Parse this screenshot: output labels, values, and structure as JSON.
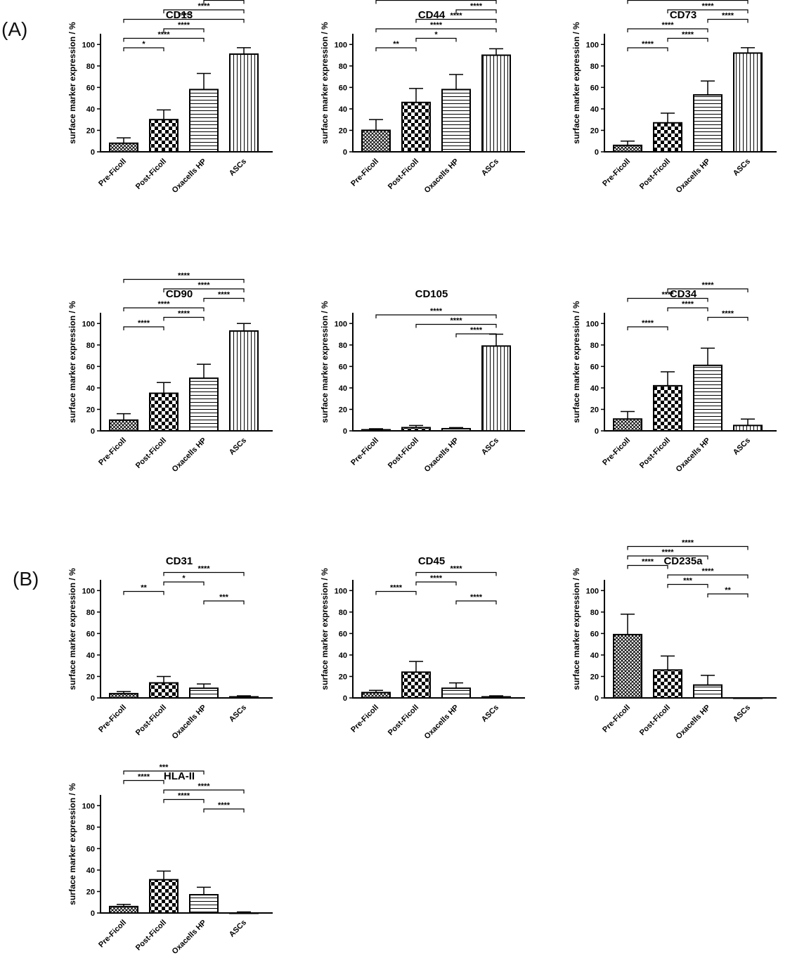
{
  "figure": {
    "panel_a": "(A)",
    "panel_b": "(B)"
  },
  "colors": {
    "ink": "#000000",
    "background": "#ffffff"
  },
  "chart_data": [
    {
      "type": "bar",
      "title": "CD13",
      "categories": [
        "Pre-Ficoll",
        "Post-Ficoll",
        "Oxacells HP",
        "ASCs"
      ],
      "values": [
        8,
        30,
        58,
        91
      ],
      "errors": [
        5,
        9,
        15,
        6
      ],
      "patterns": [
        "pattern-crosshatch-fine",
        "pattern-checker",
        "pattern-horizontal-lines",
        "pattern-vertical-lines"
      ],
      "ylabel": "surface marker expression / %",
      "xlabel": "",
      "ylim": [
        0,
        110
      ],
      "yticks": [
        0,
        20,
        40,
        60,
        80,
        100
      ],
      "significance": [
        {
          "from": 0,
          "to": 1,
          "label": "*"
        },
        {
          "from": 0,
          "to": 2,
          "label": "****"
        },
        {
          "from": 1,
          "to": 2,
          "label": "****"
        },
        {
          "from": 0,
          "to": 3,
          "label": "****"
        },
        {
          "from": 1,
          "to": 3,
          "label": "****"
        },
        {
          "from": 2,
          "to": 3,
          "label": "****"
        }
      ]
    },
    {
      "type": "bar",
      "title": "CD44",
      "categories": [
        "Pre-Ficoll",
        "Post-Ficoll",
        "Oxacells HP",
        "ASCs"
      ],
      "values": [
        20,
        46,
        58,
        90
      ],
      "errors": [
        10,
        13,
        14,
        6
      ],
      "patterns": [
        "pattern-crosshatch-fine",
        "pattern-checker",
        "pattern-horizontal-lines",
        "pattern-vertical-lines"
      ],
      "ylabel": "surface marker expression / %",
      "xlabel": "",
      "ylim": [
        0,
        110
      ],
      "yticks": [
        0,
        20,
        40,
        60,
        80,
        100
      ],
      "significance": [
        {
          "from": 0,
          "to": 1,
          "label": "**"
        },
        {
          "from": 1,
          "to": 2,
          "label": "*"
        },
        {
          "from": 0,
          "to": 3,
          "label": "****"
        },
        {
          "from": 1,
          "to": 3,
          "label": "****"
        },
        {
          "from": 2,
          "to": 3,
          "label": "****"
        },
        {
          "from": 0,
          "to": 3,
          "label": "****"
        }
      ]
    },
    {
      "type": "bar",
      "title": "CD73",
      "categories": [
        "Pre-Ficoll",
        "Post-Ficoll",
        "Oxacells HP",
        "ASCs"
      ],
      "values": [
        6,
        27,
        53,
        92
      ],
      "errors": [
        4,
        9,
        13,
        5
      ],
      "patterns": [
        "pattern-crosshatch-fine",
        "pattern-checker",
        "pattern-horizontal-lines",
        "pattern-vertical-lines"
      ],
      "ylabel": "surface marker expression / %",
      "xlabel": "",
      "ylim": [
        0,
        110
      ],
      "yticks": [
        0,
        20,
        40,
        60,
        80,
        100
      ],
      "significance": [
        {
          "from": 0,
          "to": 1,
          "label": "****"
        },
        {
          "from": 1,
          "to": 2,
          "label": "****"
        },
        {
          "from": 0,
          "to": 2,
          "label": "****"
        },
        {
          "from": 2,
          "to": 3,
          "label": "****"
        },
        {
          "from": 1,
          "to": 3,
          "label": "****"
        },
        {
          "from": 0,
          "to": 3,
          "label": "****"
        }
      ]
    },
    {
      "type": "bar",
      "title": "CD90",
      "categories": [
        "Pre-Ficoll",
        "Post-Ficoll",
        "Oxacells HP",
        "ASCs"
      ],
      "values": [
        10,
        35,
        49,
        93
      ],
      "errors": [
        6,
        10,
        13,
        7
      ],
      "patterns": [
        "pattern-crosshatch-fine",
        "pattern-checker",
        "pattern-horizontal-lines",
        "pattern-vertical-lines"
      ],
      "ylabel": "surface marker expression / %",
      "xlabel": "",
      "ylim": [
        0,
        110
      ],
      "yticks": [
        0,
        20,
        40,
        60,
        80,
        100
      ],
      "significance": [
        {
          "from": 0,
          "to": 1,
          "label": "****"
        },
        {
          "from": 1,
          "to": 2,
          "label": "****"
        },
        {
          "from": 0,
          "to": 2,
          "label": "****"
        },
        {
          "from": 2,
          "to": 3,
          "label": "****"
        },
        {
          "from": 1,
          "to": 3,
          "label": "****"
        },
        {
          "from": 0,
          "to": 3,
          "label": "****"
        }
      ]
    },
    {
      "type": "bar",
      "title": "CD105",
      "categories": [
        "Pre-Ficoll",
        "Post-Ficoll",
        "Oxacells HP",
        "ASCs"
      ],
      "values": [
        1,
        3,
        2,
        79
      ],
      "errors": [
        1,
        2,
        1,
        11
      ],
      "patterns": [
        "pattern-crosshatch-fine",
        "pattern-checker",
        "pattern-horizontal-lines",
        "pattern-vertical-lines"
      ],
      "ylabel": "surface marker expression / %",
      "xlabel": "",
      "ylim": [
        0,
        110
      ],
      "yticks": [
        0,
        20,
        40,
        60,
        80,
        100
      ],
      "significance": [
        {
          "from": 2,
          "to": 3,
          "label": "****"
        },
        {
          "from": 1,
          "to": 3,
          "label": "****"
        },
        {
          "from": 0,
          "to": 3,
          "label": "****"
        }
      ]
    },
    {
      "type": "bar",
      "title": "CD34",
      "categories": [
        "Pre-Ficoll",
        "Post-Ficoll",
        "Oxacells HP",
        "ASCs"
      ],
      "values": [
        11,
        42,
        61,
        5
      ],
      "errors": [
        7,
        13,
        16,
        6
      ],
      "patterns": [
        "pattern-crosshatch-fine",
        "pattern-checker",
        "pattern-horizontal-lines",
        "pattern-vertical-lines"
      ],
      "ylabel": "surface marker expression / %",
      "xlabel": "",
      "ylim": [
        0,
        110
      ],
      "yticks": [
        0,
        20,
        40,
        60,
        80,
        100
      ],
      "significance": [
        {
          "from": 0,
          "to": 1,
          "label": "****"
        },
        {
          "from": 2,
          "to": 3,
          "label": "****"
        },
        {
          "from": 1,
          "to": 2,
          "label": "****"
        },
        {
          "from": 0,
          "to": 2,
          "label": "****"
        },
        {
          "from": 1,
          "to": 3,
          "label": "****"
        }
      ]
    },
    {
      "type": "bar",
      "title": "CD31",
      "categories": [
        "Pre-Ficoll",
        "Post-Ficoll",
        "Oxacells HP",
        "ASCs"
      ],
      "values": [
        4,
        14,
        9,
        1
      ],
      "errors": [
        2,
        6,
        4,
        1
      ],
      "patterns": [
        "pattern-crosshatch-fine",
        "pattern-checker",
        "pattern-horizontal-lines",
        "pattern-vertical-lines"
      ],
      "ylabel": "surface marker expression / %",
      "xlabel": "",
      "ylim": [
        0,
        110
      ],
      "yticks": [
        0,
        20,
        40,
        60,
        80,
        100
      ],
      "significance": [
        {
          "from": 2,
          "to": 3,
          "label": "***"
        },
        {
          "from": 0,
          "to": 1,
          "label": "**"
        },
        {
          "from": 1,
          "to": 2,
          "label": "*"
        },
        {
          "from": 1,
          "to": 3,
          "label": "****"
        }
      ]
    },
    {
      "type": "bar",
      "title": "CD45",
      "categories": [
        "Pre-Ficoll",
        "Post-Ficoll",
        "Oxacells HP",
        "ASCs"
      ],
      "values": [
        5,
        24,
        9,
        1
      ],
      "errors": [
        2,
        10,
        5,
        1
      ],
      "patterns": [
        "pattern-crosshatch-fine",
        "pattern-checker",
        "pattern-horizontal-lines",
        "pattern-vertical-lines"
      ],
      "ylabel": "surface marker expression / %",
      "xlabel": "",
      "ylim": [
        0,
        110
      ],
      "yticks": [
        0,
        20,
        40,
        60,
        80,
        100
      ],
      "significance": [
        {
          "from": 2,
          "to": 3,
          "label": "****"
        },
        {
          "from": 0,
          "to": 1,
          "label": "****"
        },
        {
          "from": 1,
          "to": 2,
          "label": "****"
        },
        {
          "from": 1,
          "to": 3,
          "label": "****"
        }
      ]
    },
    {
      "type": "bar",
      "title": "CD235a",
      "categories": [
        "Pre-Ficoll",
        "Post-Ficoll",
        "Oxacells HP",
        "ASCs"
      ],
      "values": [
        59,
        26,
        12,
        0
      ],
      "errors": [
        19,
        13,
        9,
        0
      ],
      "patterns": [
        "pattern-crosshatch-fine",
        "pattern-checker",
        "pattern-horizontal-lines",
        "pattern-vertical-lines"
      ],
      "ylabel": "surface marker expression / %",
      "xlabel": "",
      "ylim": [
        0,
        110
      ],
      "yticks": [
        0,
        20,
        40,
        60,
        80,
        100
      ],
      "significance": [
        {
          "from": 2,
          "to": 3,
          "label": "**"
        },
        {
          "from": 1,
          "to": 2,
          "label": "***"
        },
        {
          "from": 1,
          "to": 3,
          "label": "****"
        },
        {
          "from": 0,
          "to": 1,
          "label": "****"
        },
        {
          "from": 0,
          "to": 2,
          "label": "****"
        },
        {
          "from": 0,
          "to": 3,
          "label": "****"
        }
      ]
    },
    {
      "type": "bar",
      "title": "HLA-II",
      "categories": [
        "Pre-Ficoll",
        "Post-Ficoll",
        "Oxacells HP",
        "ASCs"
      ],
      "values": [
        6,
        31,
        17,
        0
      ],
      "errors": [
        2,
        8,
        7,
        1
      ],
      "patterns": [
        "pattern-crosshatch-fine",
        "pattern-checker",
        "pattern-horizontal-lines",
        "pattern-vertical-lines"
      ],
      "ylabel": "surface marker expression / %",
      "xlabel": "",
      "ylim": [
        0,
        110
      ],
      "yticks": [
        0,
        20,
        40,
        60,
        80,
        100
      ],
      "significance": [
        {
          "from": 2,
          "to": 3,
          "label": "****"
        },
        {
          "from": 1,
          "to": 2,
          "label": "****"
        },
        {
          "from": 1,
          "to": 3,
          "label": "****"
        },
        {
          "from": 0,
          "to": 1,
          "label": "****"
        },
        {
          "from": 0,
          "to": 2,
          "label": "***"
        }
      ]
    }
  ]
}
